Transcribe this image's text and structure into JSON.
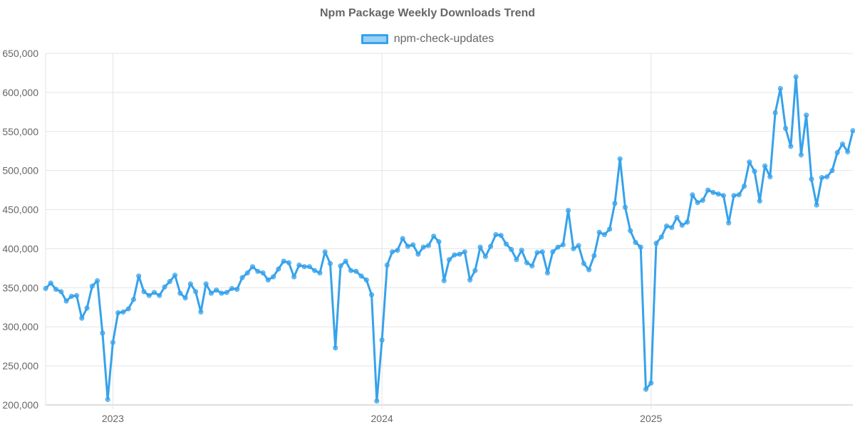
{
  "chart_data": {
    "type": "line",
    "title": "Npm Package Weekly Downloads Trend",
    "xlabel": "",
    "ylabel": "",
    "ylim": [
      200000,
      650000
    ],
    "y_ticks": [
      "200,000",
      "250,000",
      "300,000",
      "350,000",
      "400,000",
      "450,000",
      "500,000",
      "550,000",
      "600,000",
      "650,000"
    ],
    "y_tick_values": [
      200000,
      250000,
      300000,
      350000,
      400000,
      450000,
      500000,
      550000,
      600000,
      650000
    ],
    "x_ticks": [
      "2023",
      "2024",
      "2025"
    ],
    "x_tick_index": [
      13,
      65,
      117
    ],
    "legend_position": "top-center",
    "grid": true,
    "series": [
      {
        "name": "npm-check-updates",
        "color": "#36A2EB",
        "values": [
          349000,
          356000,
          348000,
          345000,
          333000,
          339000,
          340000,
          311000,
          324000,
          352000,
          359000,
          292000,
          207000,
          280000,
          318000,
          319000,
          323000,
          335000,
          365000,
          345000,
          340000,
          344000,
          340000,
          351000,
          358000,
          366000,
          343000,
          337000,
          355000,
          345000,
          319000,
          355000,
          343000,
          347000,
          343000,
          344000,
          349000,
          348000,
          363000,
          369000,
          377000,
          371000,
          369000,
          360000,
          364000,
          374000,
          384000,
          382000,
          364000,
          379000,
          377000,
          377000,
          372000,
          369000,
          396000,
          381000,
          273000,
          378000,
          384000,
          372000,
          371000,
          365000,
          360000,
          341000,
          205000,
          283000,
          379000,
          396000,
          398000,
          413000,
          403000,
          405000,
          393000,
          402000,
          404000,
          416000,
          409000,
          359000,
          386000,
          392000,
          393000,
          396000,
          360000,
          372000,
          402000,
          390000,
          403000,
          418000,
          417000,
          406000,
          399000,
          386000,
          398000,
          382000,
          378000,
          395000,
          396000,
          369000,
          396000,
          402000,
          405000,
          449000,
          400000,
          404000,
          381000,
          373000,
          391000,
          421000,
          418000,
          425000,
          458000,
          515000,
          453000,
          423000,
          408000,
          402000,
          220000,
          228000,
          407000,
          415000,
          429000,
          427000,
          440000,
          430000,
          434000,
          469000,
          459000,
          462000,
          475000,
          472000,
          470000,
          468000,
          433000,
          468000,
          469000,
          480000,
          511000,
          499000,
          461000,
          506000,
          492000,
          574000,
          605000,
          554000,
          531000,
          620000,
          520000,
          571000,
          489000,
          456000,
          491000,
          492000,
          500000,
          523000,
          534000,
          524000,
          551000
        ]
      }
    ]
  }
}
